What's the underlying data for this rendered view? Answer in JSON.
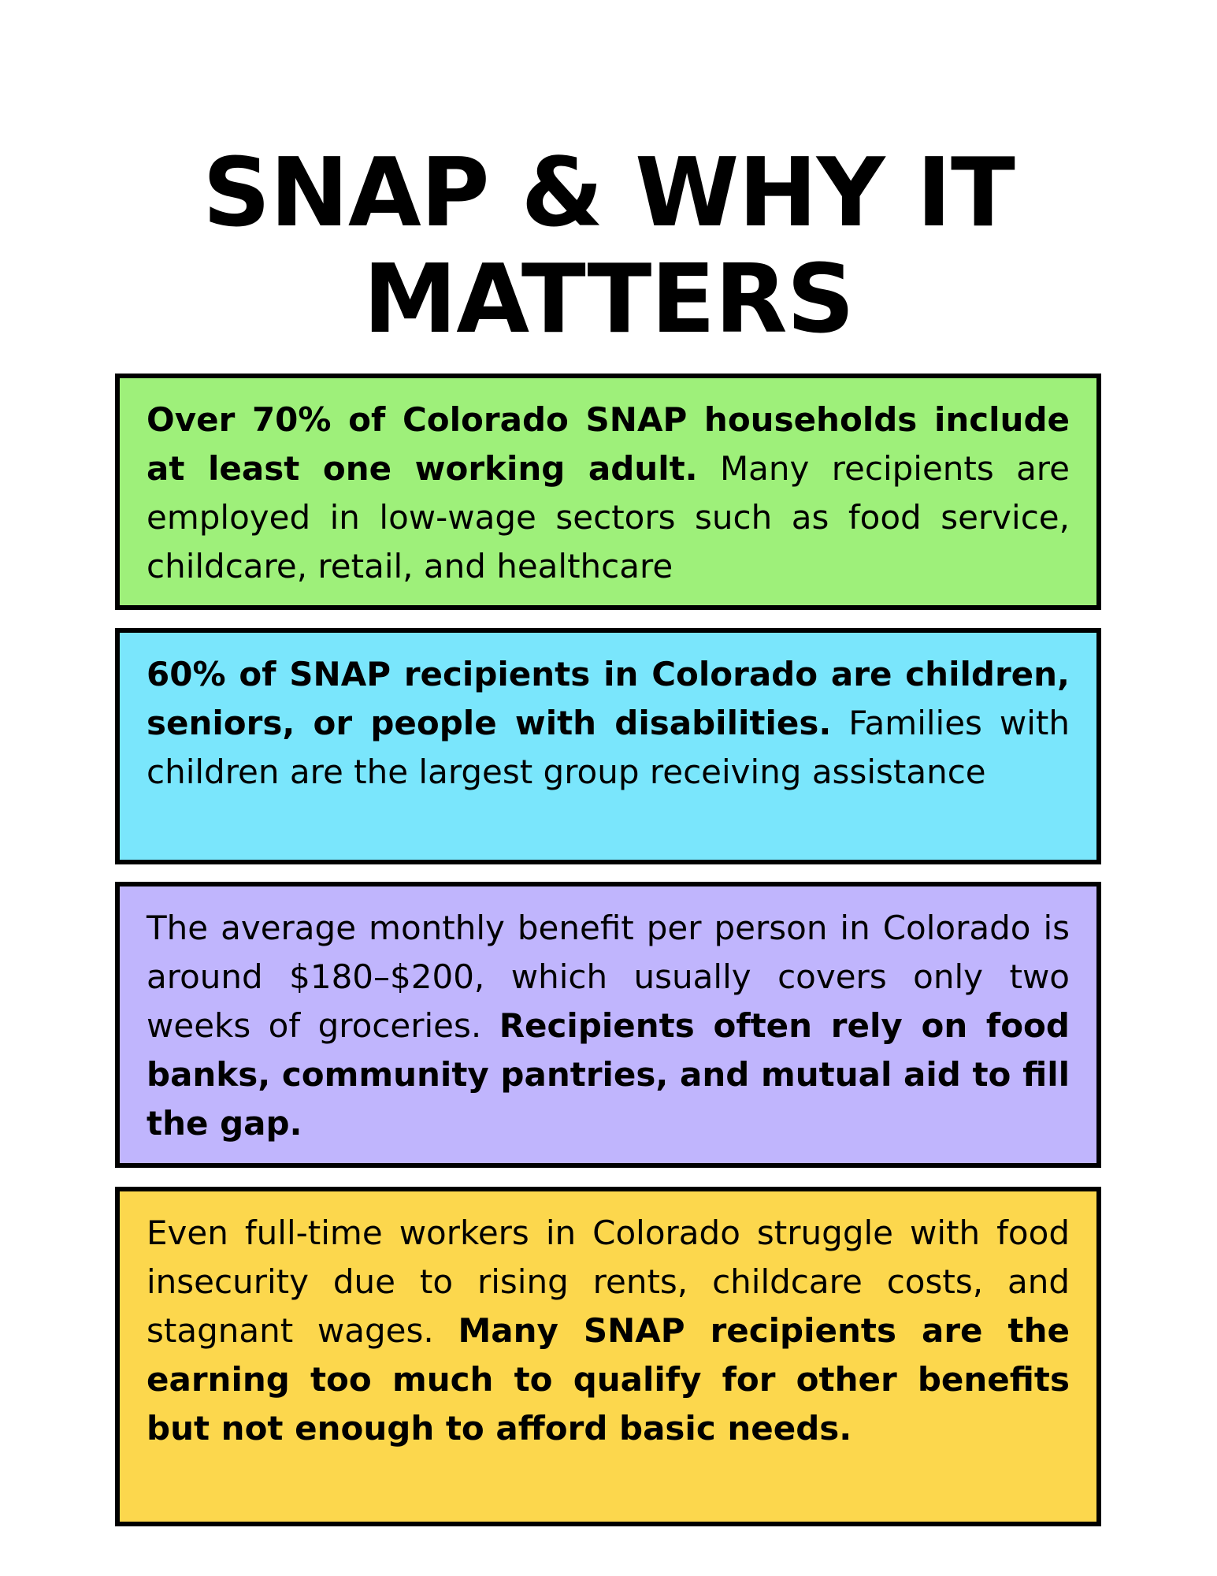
{
  "title": {
    "line1": "SNAP & WHY IT",
    "line2": "MATTERS"
  },
  "cards": [
    {
      "color": "#9ef07a",
      "bold_lead": "Over 70% of Colorado SNAP households include at least one working adult.",
      "regular_tail": " Many recipients are employed in low-wage sectors such as food service, childcare, retail, and healthcare"
    },
    {
      "color": "#7ae6fc",
      "bold_lead": "60% of SNAP recipients in Colorado are children, seniors, or people with disabilities.",
      "regular_tail": " Families with children are the largest group receiving assistance"
    },
    {
      "color": "#c0b5fd",
      "regular_lead": "The average monthly benefit per person in Colorado is around $180–$200, which usually covers only two weeks of groceries. ",
      "bold_tail": "Recipients often rely on food banks, community pantries, and mutual aid to fill the gap."
    },
    {
      "color": "#fcd74d",
      "regular_lead": "Even full-time workers in Colorado struggle with food insecurity due to rising rents, childcare costs, and stagnant wages. ",
      "bold_tail": "Many SNAP recipients are the earning too much to qualify for other benefits but not enough to afford basic needs."
    }
  ]
}
